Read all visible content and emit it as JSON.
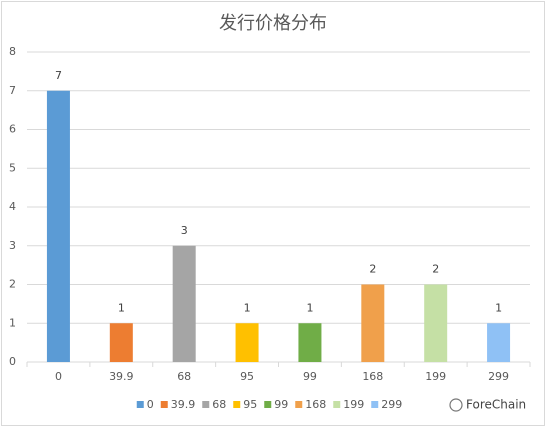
{
  "chart_data": {
    "type": "bar",
    "title": "发行价格分布",
    "categories": [
      "0",
      "39.9",
      "68",
      "95",
      "99",
      "168",
      "199",
      "299"
    ],
    "values": [
      7,
      1,
      3,
      1,
      1,
      2,
      2,
      1
    ],
    "colors": [
      "#5b9bd5",
      "#ed7d31",
      "#a5a5a5",
      "#ffc000",
      "#70ad47",
      "#f0a04b",
      "#c5e0a5",
      "#8fc1f5"
    ],
    "ylim": [
      0,
      8
    ],
    "yticks": [
      0,
      1,
      2,
      3,
      4,
      5,
      6,
      7,
      8
    ],
    "grid": true,
    "legend": "bottom",
    "watermark": "ForeChain"
  }
}
